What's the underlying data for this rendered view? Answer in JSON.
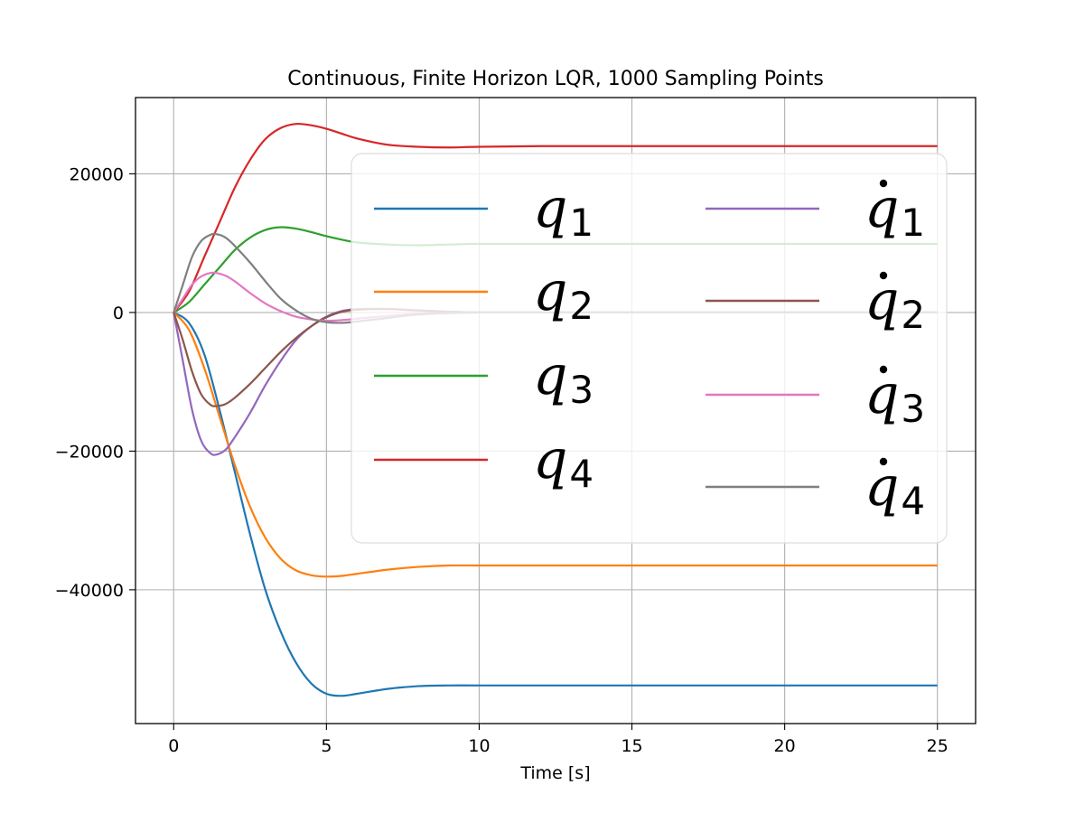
{
  "chart_data": {
    "type": "line",
    "title": "Continuous, Finite Horizon LQR, 1000 Sampling Points",
    "xlabel": "Time [s]",
    "ylabel": "",
    "xlim": [
      -1.25,
      26.25
    ],
    "ylim": [
      -59300,
      31000
    ],
    "xticks": [
      0,
      5,
      10,
      15,
      20,
      25
    ],
    "xtick_labels": [
      "0",
      "5",
      "10",
      "15",
      "20",
      "25"
    ],
    "yticks": [
      20000,
      0,
      -20000,
      -40000
    ],
    "ytick_labels": [
      "20000",
      "0",
      "−20000",
      "−40000"
    ],
    "grid": true,
    "legend": {
      "placement": "top-right",
      "columns": 2
    },
    "series": [
      {
        "name": "q1",
        "symbol": "q",
        "sub": "1",
        "dot": false,
        "color": "#1f77b4",
        "x": [
          0,
          0.5,
          1,
          1.5,
          2,
          2.5,
          3,
          3.5,
          4,
          4.5,
          5,
          5.5,
          6,
          7,
          8,
          9,
          10,
          12,
          15,
          20,
          25
        ],
        "y": [
          0,
          -1500,
          -6000,
          -14000,
          -23000,
          -32000,
          -40000,
          -46000,
          -50500,
          -53500,
          -55000,
          -55300,
          -55000,
          -54300,
          -53900,
          -53800,
          -53800,
          -53800,
          -53800,
          -53800,
          -53800
        ]
      },
      {
        "name": "q2",
        "symbol": "q",
        "sub": "2",
        "dot": false,
        "color": "#ff7f0e",
        "x": [
          0,
          0.5,
          1,
          1.5,
          2,
          2.5,
          3,
          3.5,
          4,
          4.5,
          5,
          5.5,
          6,
          7,
          8,
          9,
          10,
          12,
          15,
          20,
          25
        ],
        "y": [
          0,
          -2500,
          -8000,
          -15000,
          -22000,
          -28000,
          -32500,
          -35500,
          -37200,
          -37900,
          -38100,
          -38000,
          -37700,
          -37100,
          -36700,
          -36500,
          -36500,
          -36500,
          -36500,
          -36500,
          -36500
        ]
      },
      {
        "name": "q3",
        "symbol": "q",
        "sub": "3",
        "dot": false,
        "color": "#2ca02c",
        "x": [
          0,
          0.5,
          1,
          1.5,
          2,
          2.5,
          3,
          3.5,
          4,
          4.5,
          5,
          5.5,
          6,
          7,
          8,
          9,
          10,
          12,
          15,
          20,
          25
        ],
        "y": [
          0,
          1500,
          4000,
          6500,
          9000,
          10800,
          11900,
          12300,
          12100,
          11600,
          11000,
          10500,
          10100,
          9800,
          9700,
          9800,
          9900,
          9900,
          9900,
          9900,
          9900
        ]
      },
      {
        "name": "q4",
        "symbol": "q",
        "sub": "4",
        "dot": false,
        "color": "#d62728",
        "x": [
          0,
          0.5,
          1,
          1.5,
          2,
          2.5,
          3,
          3.5,
          4,
          4.5,
          5,
          5.5,
          6,
          7,
          8,
          9,
          10,
          12,
          15,
          20,
          25
        ],
        "y": [
          0,
          3000,
          8000,
          13000,
          18000,
          22000,
          25000,
          26600,
          27200,
          27000,
          26500,
          25800,
          25100,
          24200,
          23900,
          23800,
          23900,
          24000,
          24000,
          24000,
          24000
        ]
      },
      {
        "name": "q̇1",
        "symbol": "q̇",
        "sub": "1",
        "dot": true,
        "color": "#9467bd",
        "x": [
          0,
          0.3,
          0.6,
          0.9,
          1.2,
          1.4,
          1.7,
          2,
          2.5,
          3,
          3.5,
          4,
          4.5,
          5,
          5.5,
          6,
          7,
          8,
          10,
          15,
          25
        ],
        "y": [
          0,
          -7000,
          -14000,
          -18500,
          -20300,
          -20500,
          -19800,
          -18000,
          -14500,
          -10500,
          -7000,
          -4000,
          -2000,
          -600,
          200,
          500,
          500,
          300,
          0,
          0,
          0
        ]
      },
      {
        "name": "q̇2",
        "symbol": "q̇",
        "sub": "2",
        "dot": true,
        "color": "#8c564b",
        "x": [
          0,
          0.3,
          0.6,
          0.9,
          1.2,
          1.4,
          1.7,
          2,
          2.5,
          3,
          3.5,
          4,
          4.5,
          5,
          5.5,
          6,
          7,
          8,
          10,
          15,
          25
        ],
        "y": [
          0,
          -4000,
          -8500,
          -11800,
          -13300,
          -13500,
          -13200,
          -12300,
          -10300,
          -8000,
          -5700,
          -3700,
          -2000,
          -700,
          100,
          400,
          500,
          300,
          0,
          0,
          0
        ]
      },
      {
        "name": "q̇3",
        "symbol": "q̇",
        "sub": "3",
        "dot": true,
        "color": "#e377c2",
        "x": [
          0,
          0.3,
          0.6,
          0.9,
          1.2,
          1.4,
          1.7,
          2,
          2.5,
          3,
          3.5,
          4,
          4.5,
          5,
          5.5,
          6,
          7,
          8,
          10,
          15,
          25
        ],
        "y": [
          0,
          2000,
          4000,
          5200,
          5700,
          5700,
          5300,
          4500,
          2800,
          1300,
          200,
          -600,
          -1000,
          -1200,
          -1100,
          -900,
          -500,
          -200,
          0,
          0,
          0
        ]
      },
      {
        "name": "q̇4",
        "symbol": "q̇",
        "sub": "4",
        "dot": true,
        "color": "#7f7f7f",
        "x": [
          0,
          0.3,
          0.6,
          0.9,
          1.2,
          1.4,
          1.7,
          2,
          2.5,
          3,
          3.5,
          4,
          4.5,
          5,
          5.5,
          6,
          7,
          8,
          10,
          15,
          25
        ],
        "y": [
          0,
          4000,
          8000,
          10300,
          11200,
          11300,
          10800,
          9600,
          7200,
          4500,
          2000,
          300,
          -900,
          -1400,
          -1500,
          -1300,
          -800,
          -300,
          0,
          0,
          0
        ]
      }
    ]
  }
}
